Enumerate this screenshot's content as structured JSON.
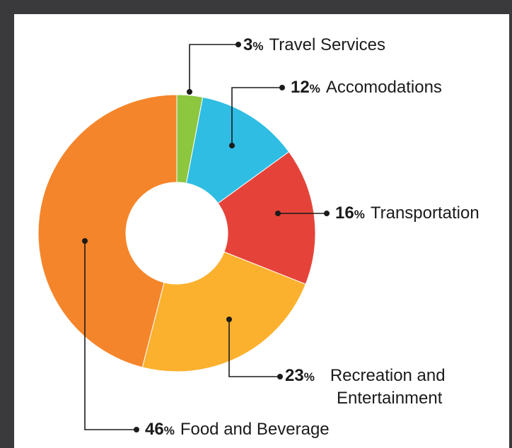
{
  "chart_data": {
    "type": "pie",
    "donut": true,
    "categories": [
      "Travel Services",
      "Accomodations",
      "Transportation",
      "Recreation and Entertainment",
      "Food and Beverage"
    ],
    "values": [
      3,
      12,
      16,
      23,
      46
    ],
    "unit": "%",
    "colors": [
      "#8dc63f",
      "#2fbde3",
      "#e5433a",
      "#fbb12e",
      "#f5852a"
    ],
    "labels": [
      {
        "value": "3",
        "unit": "%",
        "name": "Travel Services"
      },
      {
        "value": "12",
        "unit": "%",
        "name": "Accomodations"
      },
      {
        "value": "16",
        "unit": "%",
        "name": "Transportation"
      },
      {
        "value": "23",
        "unit": "%",
        "name": "Recreation and",
        "name2": "Entertainment"
      },
      {
        "value": "46",
        "unit": "%",
        "name": "Food and Beverage"
      }
    ],
    "title": ""
  }
}
